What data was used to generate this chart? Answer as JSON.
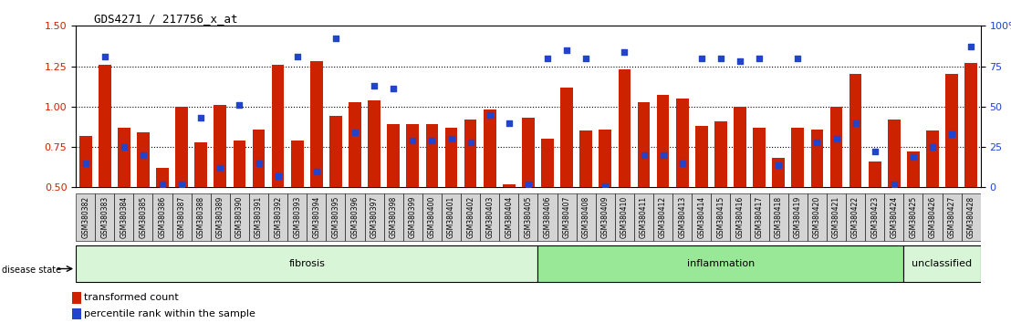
{
  "title": "GDS4271 / 217756_x_at",
  "samples": [
    "GSM380382",
    "GSM380383",
    "GSM380384",
    "GSM380385",
    "GSM380386",
    "GSM380387",
    "GSM380388",
    "GSM380389",
    "GSM380390",
    "GSM380391",
    "GSM380392",
    "GSM380393",
    "GSM380394",
    "GSM380395",
    "GSM380396",
    "GSM380397",
    "GSM380398",
    "GSM380399",
    "GSM380400",
    "GSM380401",
    "GSM380402",
    "GSM380403",
    "GSM380404",
    "GSM380405",
    "GSM380406",
    "GSM380407",
    "GSM380408",
    "GSM380409",
    "GSM380410",
    "GSM380411",
    "GSM380412",
    "GSM380413",
    "GSM380414",
    "GSM380415",
    "GSM380416",
    "GSM380417",
    "GSM380418",
    "GSM380419",
    "GSM380420",
    "GSM380421",
    "GSM380422",
    "GSM380423",
    "GSM380424",
    "GSM380425",
    "GSM380426",
    "GSM380427",
    "GSM380428"
  ],
  "bar_values": [
    0.82,
    1.26,
    0.87,
    0.84,
    0.62,
    1.0,
    0.78,
    1.01,
    0.79,
    0.86,
    1.26,
    0.79,
    1.28,
    0.94,
    1.03,
    1.04,
    0.89,
    0.89,
    0.89,
    0.87,
    0.92,
    0.98,
    0.52,
    0.93,
    0.8,
    1.12,
    0.85,
    0.86,
    1.23,
    1.03,
    1.07,
    1.05,
    0.88,
    0.91,
    1.0,
    0.87,
    0.68,
    0.87,
    0.86,
    1.0,
    1.2,
    0.66,
    0.92,
    0.72,
    0.85,
    1.2,
    1.27
  ],
  "dot_percentiles": [
    15,
    81,
    25,
    20,
    2,
    2,
    43,
    12,
    51,
    15,
    7,
    81,
    10,
    92,
    34,
    63,
    61,
    29,
    29,
    30,
    28,
    45,
    40,
    2,
    80,
    85,
    80,
    1,
    84,
    20,
    20,
    15,
    80,
    80,
    78,
    80,
    14,
    80,
    28,
    30,
    40,
    22,
    2,
    19,
    25,
    33,
    87
  ],
  "disease_groups": [
    {
      "label": "fibrosis",
      "start": 0,
      "end": 23,
      "color": "#d8f5d8"
    },
    {
      "label": "inflammation",
      "start": 24,
      "end": 42,
      "color": "#98e898"
    },
    {
      "label": "unclassified",
      "start": 43,
      "end": 46,
      "color": "#d8f5d8"
    }
  ],
  "ylim_left": [
    0.5,
    1.5
  ],
  "ylim_right": [
    0,
    100
  ],
  "yticks_left": [
    0.5,
    0.75,
    1.0,
    1.25,
    1.5
  ],
  "yticks_right": [
    0,
    25,
    50,
    75,
    100
  ],
  "bar_color": "#cc2200",
  "dot_color": "#2244cc",
  "grid_lines": [
    0.75,
    1.0,
    1.25
  ],
  "bar_width": 0.65,
  "tick_label_bg": "#d4d4d4"
}
